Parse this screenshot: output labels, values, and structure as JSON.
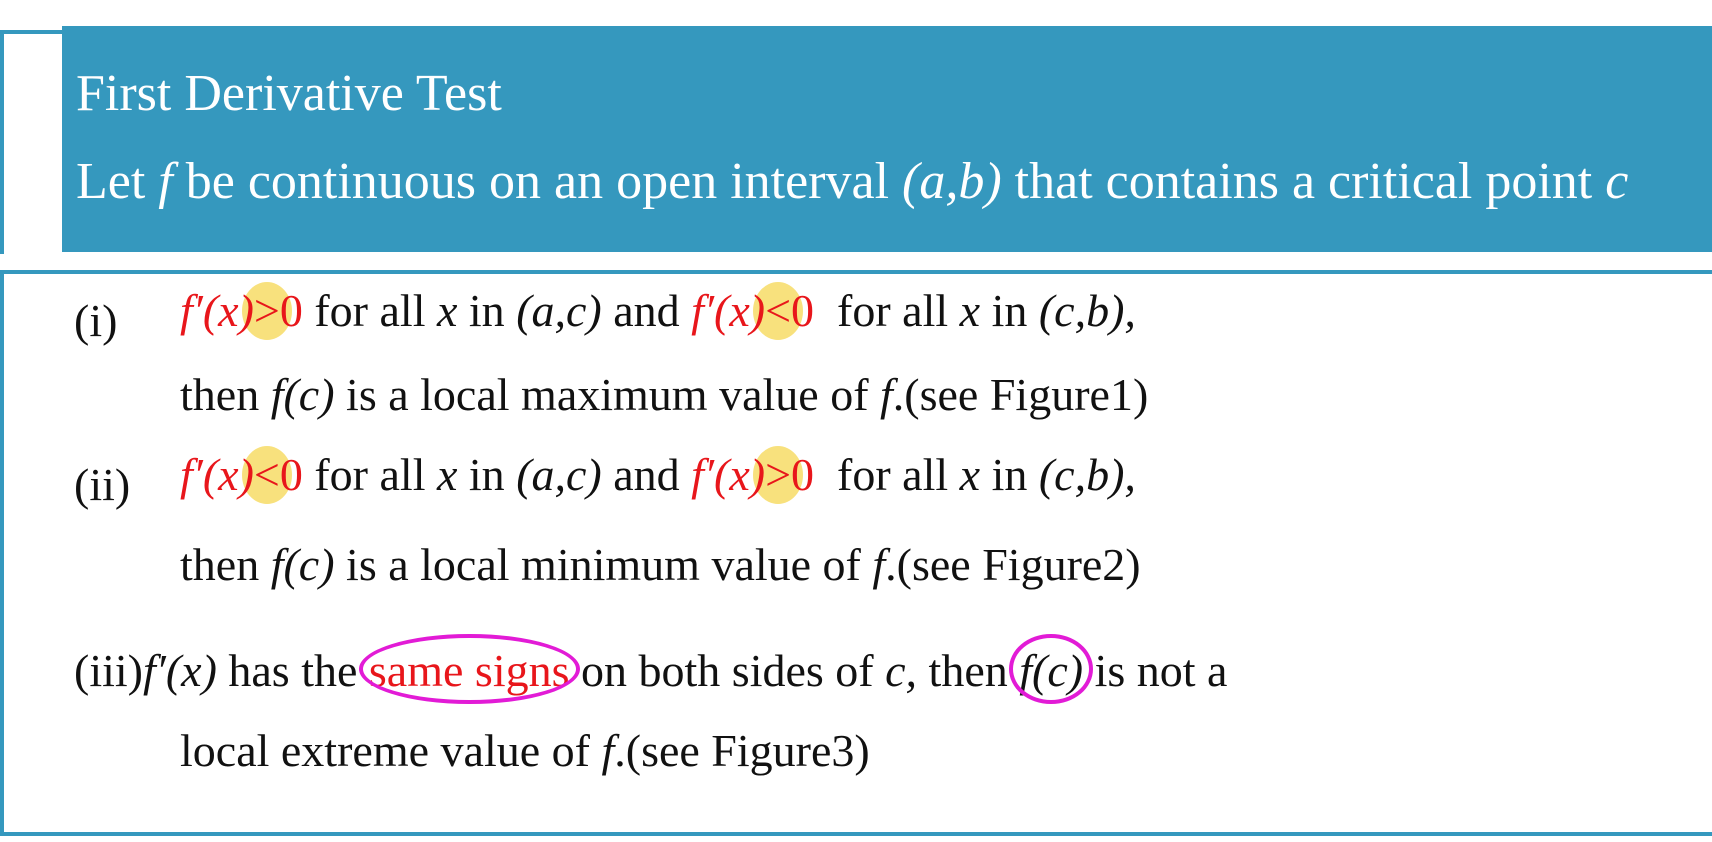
{
  "header": {
    "title": "First Derivative Test",
    "statement_let": "Let",
    "statement_f": "f",
    "statement_mid": "be continuous on an open interval",
    "statement_interval": "(a,b)",
    "statement_end": "that contains a critical point",
    "statement_c": "c"
  },
  "items": {
    "i": {
      "label": "(i)",
      "deriv1": "f′(x)",
      "rel1": ">",
      "zero1": "0",
      "for_all1": "for all",
      "x1": "x",
      "in1": "in",
      "int1": "(a,c)",
      "and": "and",
      "deriv2": "f′(x)",
      "rel2": "<",
      "zero2": "0",
      "for_all2": "for all",
      "x2": "x",
      "in2": "in",
      "int2": "(c,b),",
      "then": "then",
      "fc": "f(c)",
      "conclusion": "is a local maximum value of",
      "f": "f",
      "see": ".(see Figure1)"
    },
    "ii": {
      "label": "(ii)",
      "deriv1": "f′(x)",
      "rel1": "<",
      "zero1": "0",
      "for_all1": "for all",
      "x1": "x",
      "in1": "in",
      "int1": "(a,c)",
      "and": "and",
      "deriv2": "f′(x)",
      "rel2": ">",
      "zero2": "0",
      "for_all2": "for all",
      "x2": "x",
      "in2": "in",
      "int2": "(c,b),",
      "then": "then",
      "fc": "f(c)",
      "conclusion": "is a local minimum value of",
      "f": "f",
      "see": ".(see Figure2)"
    },
    "iii": {
      "label": "(iii)",
      "deriv": "f′(x)",
      "has_the": "has the",
      "same_signs": "same signs",
      "both_sides": "on both sides of",
      "c": "c,",
      "then": "then",
      "fc": "f(c)",
      "is_not_a": "is not a",
      "line2": "local extreme value of",
      "f": "f",
      "see": ".(see Figure3)"
    }
  }
}
